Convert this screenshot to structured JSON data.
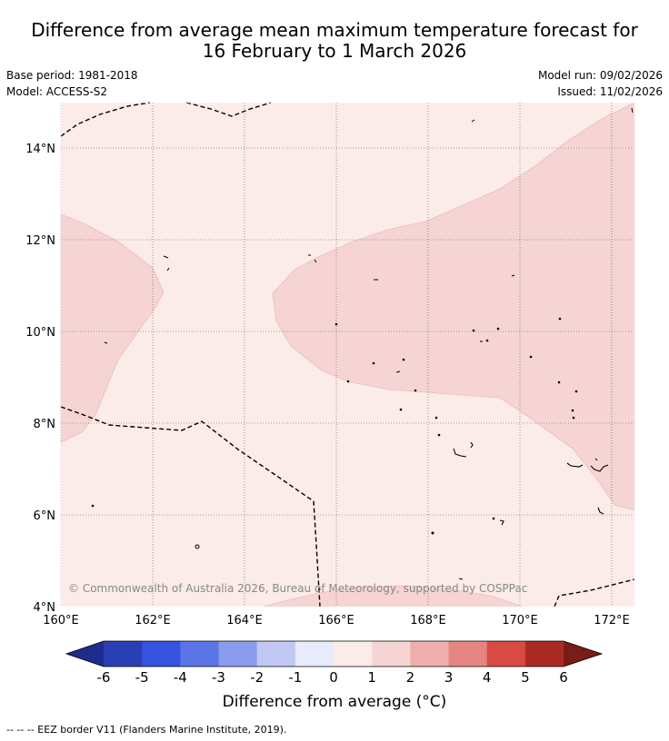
{
  "title": {
    "line1": "Difference from average mean maximum temperature forecast for",
    "line2": "16 February to 1 March 2026"
  },
  "meta": {
    "base_period": "Base period: 1981-2018",
    "model": "Model: ACCESS-S2",
    "model_run": "Model run: 09/02/2026",
    "issued": "Issued: 11/02/2026"
  },
  "map": {
    "lon_ticks": [
      "160°E",
      "162°E",
      "164°E",
      "166°E",
      "168°E",
      "170°E",
      "172°E"
    ],
    "lat_ticks": [
      "14°N",
      "12°N",
      "10°N",
      "8°N",
      "6°N",
      "4°N"
    ],
    "colors": {
      "background_anomaly_0_to_1": "#fbebe9",
      "anomaly_1_to_2": "#f5d4d3",
      "eez_border": "#000000",
      "gridline": "#555555"
    },
    "copyright": "© Commonwealth of Australia 2026, Bureau of Meteorology, supported by COSPPac"
  },
  "colorbar": {
    "ticks": [
      "-6",
      "-5",
      "-4",
      "-3",
      "-2",
      "-1",
      "0",
      "1",
      "2",
      "3",
      "4",
      "5",
      "6"
    ],
    "colors": [
      "#1e2d8c",
      "#2a3fb4",
      "#3552e0",
      "#5c75e6",
      "#8a9ced",
      "#c1c8f3",
      "#e8ebfb",
      "#fbebe9",
      "#f5d4d3",
      "#eeaeab",
      "#e58582",
      "#d94a43",
      "#ab2a24",
      "#7a1c18"
    ],
    "label": "Difference from average (°C)"
  },
  "footer": "--  --  -- EEZ border V11 (Flanders Marine Institute, 2019)."
}
